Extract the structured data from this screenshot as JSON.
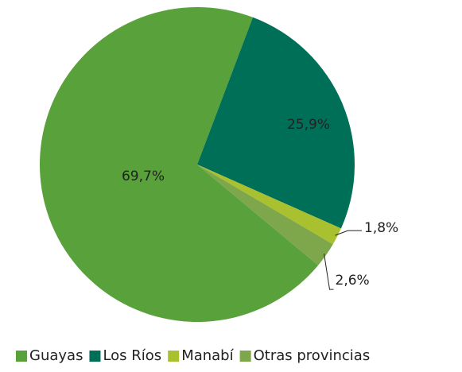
{
  "chart_data": {
    "type": "pie",
    "categories": [
      "Guayas",
      "Los Ríos",
      "Manabí",
      "Otras provincias"
    ],
    "values": [
      69.7,
      25.9,
      1.8,
      2.6
    ],
    "value_labels": [
      "69,7%",
      "25,9%",
      "1,8%",
      "2,6%"
    ],
    "colors": [
      "#58a13b",
      "#006f58",
      "#a9c02f",
      "#7ea64a"
    ],
    "legend": "bottom"
  }
}
